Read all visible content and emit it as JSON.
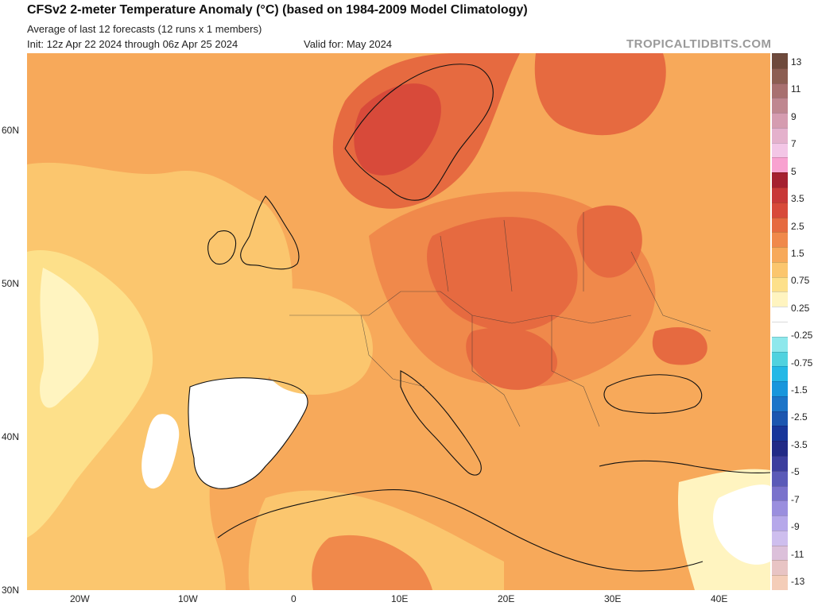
{
  "header": {
    "title": "CFSv2 2-meter Temperature Anomaly (°C) (based on 1984-2009 Model Climatology)",
    "subtitle": "Average of last 12 forecasts (12 runs x 1 members)",
    "init": "Init: 12z Apr 22 2024 through 06z Apr 25 2024",
    "valid": "Valid for: May 2024",
    "brand": "TROPICALTIDBITS.COM"
  },
  "map": {
    "lat_labels": [
      "60N",
      "50N",
      "40N",
      "30N"
    ],
    "lon_labels": [
      "20W",
      "10W",
      "0",
      "10E",
      "20E",
      "30E",
      "40E"
    ],
    "extent": {
      "lon_min": -25,
      "lon_max": 45,
      "lat_min": 30,
      "lat_max": 65
    }
  },
  "colorbar": {
    "labels": [
      "13",
      "11",
      "9",
      "7",
      "5",
      "3.5",
      "2.5",
      "1.5",
      "0.75",
      "0.25",
      "-0.25",
      "-0.75",
      "-1.5",
      "-2.5",
      "-3.5",
      "-5",
      "-7",
      "-9",
      "-11",
      "-13"
    ],
    "colors": [
      "#6e4a3c",
      "#8c5e52",
      "#a87070",
      "#bf8790",
      "#d59cb0",
      "#e4b1cc",
      "#f3c6e6",
      "#f8a2d0",
      "#a52030",
      "#c83838",
      "#d84a3a",
      "#e66a40",
      "#f0894b",
      "#f7a95a",
      "#fbc66e",
      "#fde08a",
      "#fff4c0",
      "#ffffff",
      "#ffffff",
      "#8ee8ec",
      "#50d2df",
      "#24b8e6",
      "#1896dc",
      "#1c74c8",
      "#1c56b0",
      "#18369a",
      "#222a86",
      "#3c3e9e",
      "#5a5ab8",
      "#7a72cc",
      "#9a8ede",
      "#b6a8ea",
      "#cebeee",
      "#dcc0da",
      "#e8c4c4",
      "#f4cdb8"
    ]
  }
}
